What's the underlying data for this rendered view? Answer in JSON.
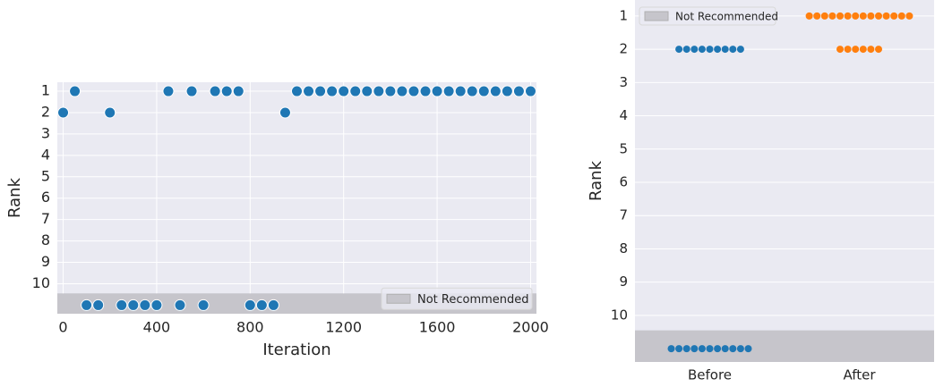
{
  "chart_data": [
    {
      "type": "scatter",
      "xlabel": "Iteration",
      "ylabel": "Rank",
      "x": [
        0,
        50,
        100,
        150,
        200,
        250,
        300,
        350,
        400,
        450,
        500,
        550,
        600,
        650,
        700,
        750,
        800,
        850,
        900,
        950,
        1000,
        1050,
        1100,
        1150,
        1200,
        1250,
        1300,
        1350,
        1400,
        1450,
        1500,
        1550,
        1600,
        1650,
        1700,
        1750,
        1800,
        1850,
        1900,
        1950,
        2000
      ],
      "values": [
        2,
        1,
        11,
        11,
        2,
        11,
        11,
        11,
        11,
        1,
        11,
        1,
        11,
        1,
        1,
        1,
        11,
        11,
        11,
        2,
        1,
        1,
        1,
        1,
        1,
        1,
        1,
        1,
        1,
        1,
        1,
        1,
        1,
        1,
        1,
        1,
        1,
        1,
        1,
        1,
        1
      ],
      "color": "#1f77b4",
      "xlim": [
        -25,
        2025
      ],
      "xticks": [
        0,
        400,
        800,
        1200,
        1600,
        2000
      ],
      "ylim": [
        11.4,
        0.58
      ],
      "yticks": [
        1,
        2,
        3,
        4,
        5,
        6,
        7,
        8,
        9,
        10
      ],
      "grid": true,
      "band": {
        "label": "Not Recommended",
        "from": 10.45,
        "color": "#c6c5cb"
      },
      "legend": "lower right"
    },
    {
      "type": "strip",
      "ylabel": "Rank",
      "categories": [
        "Before",
        "After"
      ],
      "values": [
        [
          2,
          2,
          2,
          2,
          2,
          2,
          2,
          2,
          2,
          11,
          11,
          11,
          11,
          11,
          11,
          11,
          11,
          11,
          11,
          11
        ],
        [
          1,
          1,
          1,
          1,
          1,
          1,
          1,
          1,
          1,
          1,
          1,
          1,
          1,
          1,
          2,
          2,
          2,
          2,
          2,
          2
        ]
      ],
      "colors": [
        "#1f77b4",
        "#ff7f0e"
      ],
      "ylim": [
        11.4,
        0.52
      ],
      "yticks": [
        1,
        2,
        3,
        4,
        5,
        6,
        7,
        8,
        9,
        10
      ],
      "grid": true,
      "band": {
        "label": "Not Recommended",
        "from": 10.45,
        "color": "#c6c5cb"
      },
      "legend": "upper left"
    }
  ]
}
